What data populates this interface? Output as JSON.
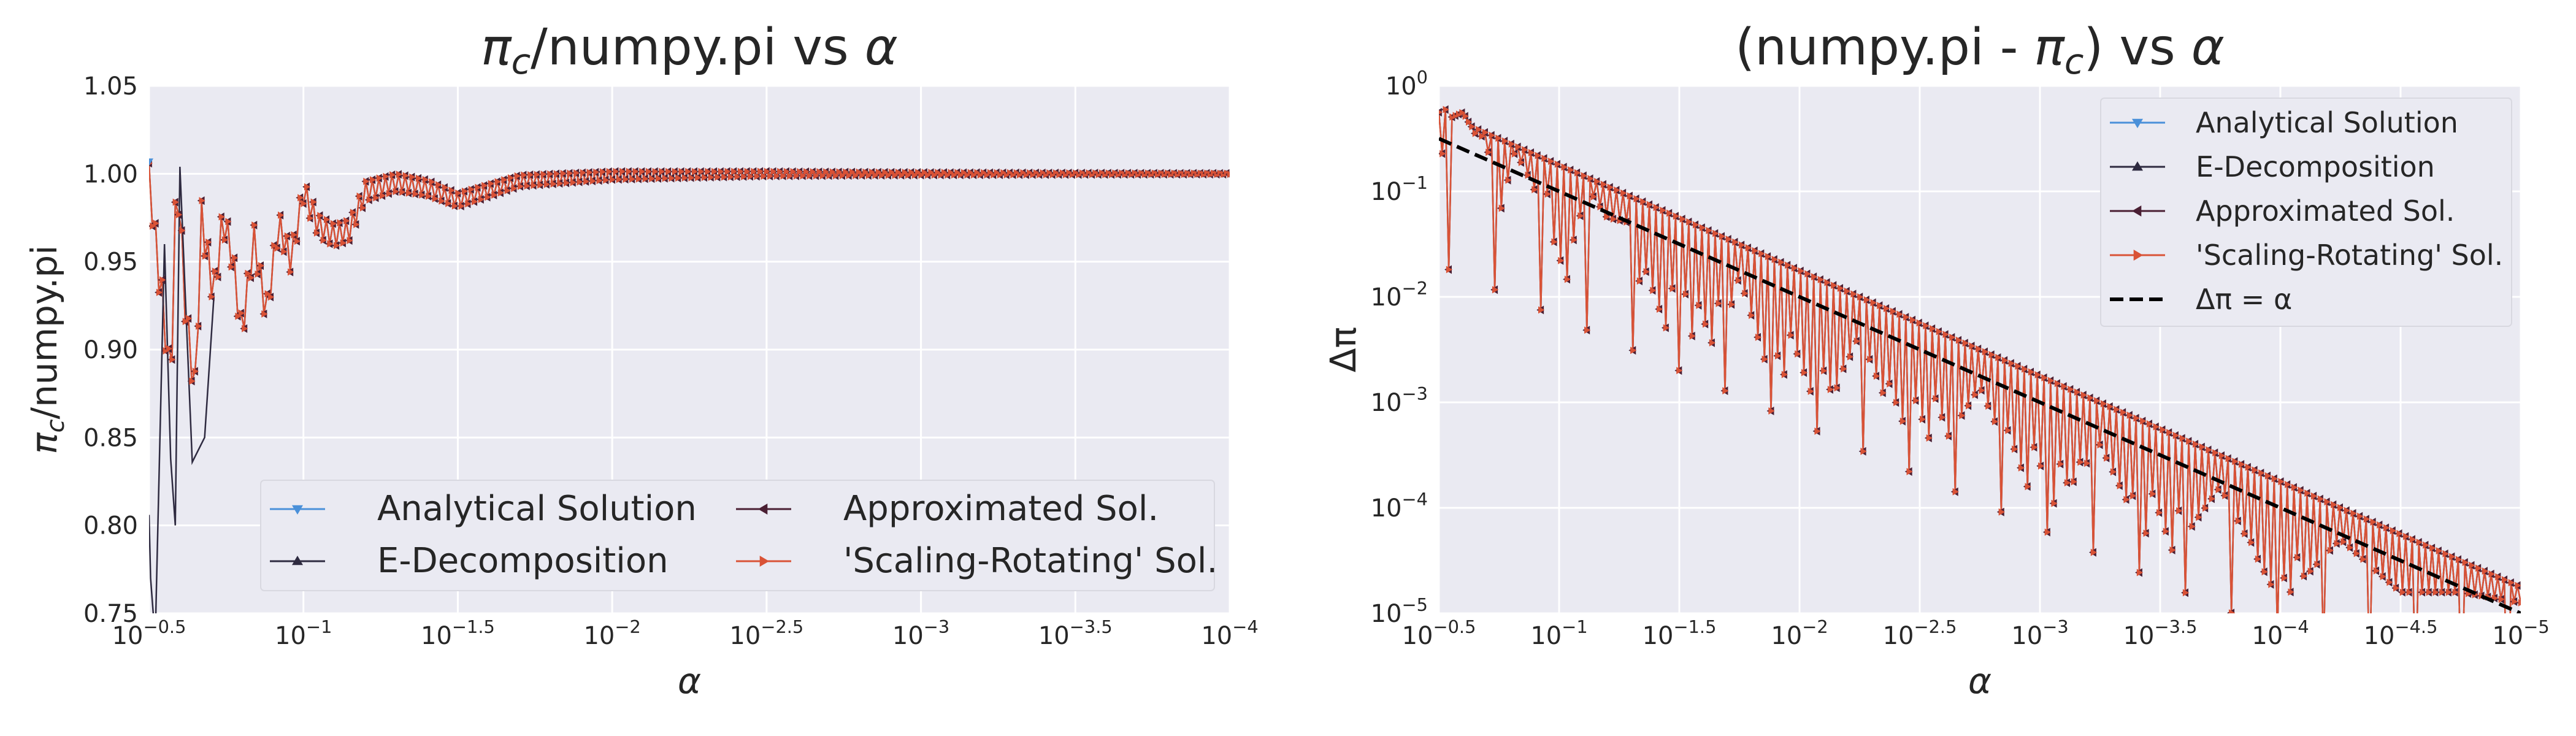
{
  "chart_data": [
    {
      "type": "line",
      "title": "π_c/numpy.pi vs α",
      "title_parts": [
        "π",
        "c",
        "/numpy.pi vs ",
        "α"
      ],
      "xlabel": "α",
      "ylabel": "π_c/numpy.pi",
      "ylabel_parts": [
        "π",
        "c",
        "/numpy.pi"
      ],
      "x_scale": "log (reversed, decreasing α to the right)",
      "xlim": [
        0.316228,
        0.0001
      ],
      "ylim": [
        0.75,
        1.05
      ],
      "grid": true,
      "legend_loc": "lower center, 2 columns",
      "x_ticks": [
        {
          "base": "10",
          "exp": "−0.5"
        },
        {
          "base": "10",
          "exp": "−1"
        },
        {
          "base": "10",
          "exp": "−1.5"
        },
        {
          "base": "10",
          "exp": "−2"
        },
        {
          "base": "10",
          "exp": "−2.5"
        },
        {
          "base": "10",
          "exp": "−3"
        },
        {
          "base": "10",
          "exp": "−3.5"
        },
        {
          "base": "10",
          "exp": "−4"
        }
      ],
      "y_ticks": [
        "0.75",
        "0.80",
        "0.85",
        "0.90",
        "0.95",
        "1.00",
        "1.05"
      ],
      "series": [
        {
          "name": "Analytical Solution",
          "color": "#4a90d9",
          "marker": "triangle-down"
        },
        {
          "name": "E-Decomposition",
          "color": "#2e2a40",
          "marker": "triangle-up"
        },
        {
          "name": "Approximated Sol.",
          "color": "#4a1f33",
          "marker": "triangle-left"
        },
        {
          "name": " 'Scaling-Rotating' Sol.",
          "color": "#d95236",
          "marker": "triangle-right"
        }
      ],
      "sampled_points": [
        {
          "log10_alpha": -0.5,
          "ratio": 1.005
        },
        {
          "log10_alpha": -0.52,
          "ratio": 0.962
        },
        {
          "log10_alpha": -0.55,
          "ratio": 0.917
        },
        {
          "log10_alpha": -0.57,
          "ratio": 0.877
        },
        {
          "log10_alpha": -0.59,
          "ratio": 1.004
        },
        {
          "log10_alpha": -0.62,
          "ratio": 0.918
        },
        {
          "log10_alpha": -0.65,
          "ratio": 0.876
        },
        {
          "log10_alpha": -0.67,
          "ratio": 0.975
        },
        {
          "log10_alpha": -0.71,
          "ratio": 0.931
        },
        {
          "log10_alpha": -0.74,
          "ratio": 0.975
        },
        {
          "log10_alpha": -0.77,
          "ratio": 0.953
        },
        {
          "log10_alpha": -0.8,
          "ratio": 0.909
        },
        {
          "log10_alpha": -0.84,
          "ratio": 0.963
        },
        {
          "log10_alpha": -0.88,
          "ratio": 0.92
        },
        {
          "log10_alpha": -0.92,
          "ratio": 0.972
        },
        {
          "log10_alpha": -0.96,
          "ratio": 0.95
        },
        {
          "log10_alpha": -1.0,
          "ratio": 0.99
        },
        {
          "log10_alpha": -1.05,
          "ratio": 0.97
        },
        {
          "log10_alpha": -1.1,
          "ratio": 0.965
        },
        {
          "log10_alpha": -1.15,
          "ratio": 0.968
        },
        {
          "log10_alpha": -1.2,
          "ratio": 0.99
        },
        {
          "log10_alpha": -1.3,
          "ratio": 0.995
        },
        {
          "log10_alpha": -1.4,
          "ratio": 0.992
        },
        {
          "log10_alpha": -1.5,
          "ratio": 0.985
        },
        {
          "log10_alpha": -1.7,
          "ratio": 0.996
        },
        {
          "log10_alpha": -2.0,
          "ratio": 0.999
        },
        {
          "log10_alpha": -2.5,
          "ratio": 1.0
        },
        {
          "log10_alpha": -3.0,
          "ratio": 1.0
        },
        {
          "log10_alpha": -3.5,
          "ratio": 1.0
        },
        {
          "log10_alpha": -4.0,
          "ratio": 1.0
        }
      ]
    },
    {
      "type": "line",
      "title": "(numpy.pi - π_c) vs α",
      "title_parts": [
        "(numpy.pi - ",
        "π",
        "c",
        ") vs ",
        "α"
      ],
      "xlabel": "α",
      "ylabel": "Δπ",
      "x_scale": "log (reversed, decreasing α to the right)",
      "y_scale": "log",
      "xlim": [
        0.316228,
        1e-05
      ],
      "ylim": [
        1e-05,
        1
      ],
      "grid": true,
      "legend_loc": "upper right",
      "x_ticks": [
        {
          "base": "10",
          "exp": "−0.5"
        },
        {
          "base": "10",
          "exp": "−1"
        },
        {
          "base": "10",
          "exp": "−1.5"
        },
        {
          "base": "10",
          "exp": "−2"
        },
        {
          "base": "10",
          "exp": "−2.5"
        },
        {
          "base": "10",
          "exp": "−3"
        },
        {
          "base": "10",
          "exp": "−3.5"
        },
        {
          "base": "10",
          "exp": "−4"
        },
        {
          "base": "10",
          "exp": "−4.5"
        },
        {
          "base": "10",
          "exp": "−5"
        }
      ],
      "y_ticks": [
        {
          "base": "10",
          "exp": "−5"
        },
        {
          "base": "10",
          "exp": "−4"
        },
        {
          "base": "10",
          "exp": "−3"
        },
        {
          "base": "10",
          "exp": "−2"
        },
        {
          "base": "10",
          "exp": "−1"
        },
        {
          "base": "10",
          "exp": "0"
        }
      ],
      "series": [
        {
          "name": "Analytical Solution",
          "color": "#4a90d9",
          "marker": "triangle-down"
        },
        {
          "name": "E-Decomposition",
          "color": "#2e2a40",
          "marker": "triangle-up"
        },
        {
          "name": "Approximated Sol.",
          "color": "#4a1f33",
          "marker": "triangle-left"
        },
        {
          "name": " 'Scaling-Rotating' Sol.",
          "color": "#d95236",
          "marker": "triangle-right"
        },
        {
          "name": "Δπ = α",
          "color": "#000000",
          "style": "dashed",
          "formula": "Δπ = α"
        }
      ],
      "sampled_points": [
        {
          "log10_alpha": -0.5,
          "log10_dpi": -1.6
        },
        {
          "log10_alpha": -0.52,
          "log10_dpi": -0.2
        },
        {
          "log10_alpha": -0.55,
          "log10_dpi": -0.3
        },
        {
          "log10_alpha": -0.6,
          "log10_dpi": -0.25
        },
        {
          "log10_alpha": -0.65,
          "log10_dpi": -0.45
        },
        {
          "log10_alpha": -0.7,
          "log10_dpi": -0.5
        },
        {
          "log10_alpha": -0.75,
          "log10_dpi": -1.75
        },
        {
          "log10_alpha": -0.8,
          "log10_dpi": -0.6
        },
        {
          "log10_alpha": -0.85,
          "log10_dpi": -0.75
        },
        {
          "log10_alpha": -0.9,
          "log10_dpi": -1.0
        },
        {
          "log10_alpha": -0.95,
          "log10_dpi": -0.95
        },
        {
          "log10_alpha": -1.0,
          "log10_dpi": -3.7
        },
        {
          "log10_alpha": -1.1,
          "log10_dpi": -0.9
        },
        {
          "log10_alpha": -1.2,
          "log10_dpi": -1.25
        },
        {
          "log10_alpha": -1.3,
          "log10_dpi": -1.3
        },
        {
          "log10_alpha": -1.4,
          "log10_dpi": -2.9
        },
        {
          "log10_alpha": -1.5,
          "log10_dpi": -1.6
        },
        {
          "log10_alpha": -1.6,
          "log10_dpi": -3.05
        },
        {
          "log10_alpha": -1.75,
          "log10_dpi": -1.8
        },
        {
          "log10_alpha": -2.0,
          "log10_dpi": -3.7
        },
        {
          "log10_alpha": -2.25,
          "log10_dpi": -2.35
        },
        {
          "log10_alpha": -2.5,
          "log10_dpi": -3.8
        },
        {
          "log10_alpha": -2.75,
          "log10_dpi": -2.85
        },
        {
          "log10_alpha": -3.0,
          "log10_dpi": -4.2
        },
        {
          "log10_alpha": -3.25,
          "log10_dpi": -3.4
        },
        {
          "log10_alpha": -3.5,
          "log10_dpi": -4.6
        },
        {
          "log10_alpha": -3.75,
          "log10_dpi": -3.8
        },
        {
          "log10_alpha": -4.0,
          "log10_dpi": -4.9
        },
        {
          "log10_alpha": -4.25,
          "log10_dpi": -4.3
        },
        {
          "log10_alpha": -4.5,
          "log10_dpi": -4.8
        },
        {
          "log10_alpha": -4.75,
          "log10_dpi": -4.8
        },
        {
          "log10_alpha": -5.0,
          "log10_dpi": -4.9
        }
      ]
    }
  ]
}
